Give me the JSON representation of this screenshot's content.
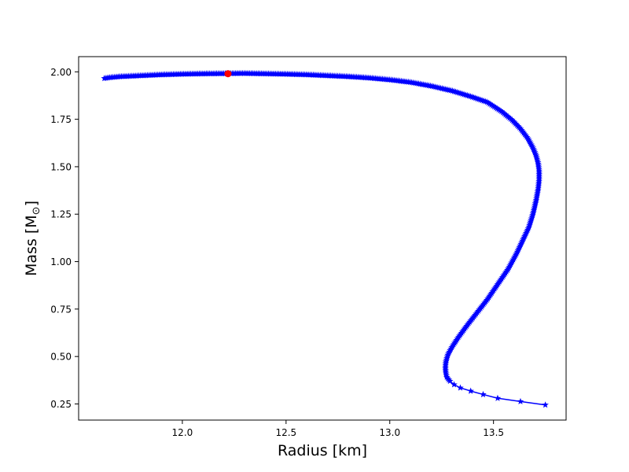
{
  "chart_data": {
    "type": "line",
    "title": "",
    "xlabel": "Radius [km]",
    "ylabel_main": "Mass [M",
    "ylabel_sub": "⊙",
    "ylabel_close": "]",
    "xlim": [
      11.5,
      13.85
    ],
    "ylim": [
      0.165,
      2.08
    ],
    "xticks": [
      12.0,
      12.5,
      13.0,
      13.5
    ],
    "xtick_labels": [
      "12.0",
      "12.5",
      "13.0",
      "13.5"
    ],
    "yticks": [
      0.25,
      0.5,
      0.75,
      1.0,
      1.25,
      1.5,
      1.75,
      2.0
    ],
    "ytick_labels": [
      "0.25",
      "0.50",
      "0.75",
      "1.00",
      "1.25",
      "1.50",
      "1.75",
      "2.00"
    ],
    "grid": false,
    "series_color": "#0000ff",
    "highlight_color": "#ff0000",
    "series": [
      {
        "x": [
          13.75,
          13.63,
          13.52,
          13.45,
          13.39,
          13.34,
          13.31,
          13.29,
          13.275,
          13.27,
          13.268,
          13.27,
          13.28,
          13.3,
          13.33,
          13.37,
          13.42,
          13.47,
          13.52,
          13.57,
          13.61,
          13.64,
          13.67,
          13.69,
          13.705,
          13.715,
          13.72,
          13.72,
          13.715,
          13.705,
          13.69,
          13.665,
          13.63,
          13.59,
          13.54,
          13.47,
          13.39,
          13.3,
          13.2,
          13.1,
          13.0,
          12.9,
          12.8,
          12.7,
          12.6,
          12.5,
          12.4,
          12.3,
          12.2,
          12.1,
          12.0,
          11.9,
          11.8,
          11.7,
          11.65,
          11.62
        ],
        "y": [
          0.245,
          0.263,
          0.28,
          0.3,
          0.318,
          0.335,
          0.352,
          0.37,
          0.39,
          0.415,
          0.44,
          0.47,
          0.51,
          0.55,
          0.6,
          0.66,
          0.73,
          0.8,
          0.88,
          0.96,
          1.04,
          1.11,
          1.18,
          1.25,
          1.32,
          1.38,
          1.43,
          1.48,
          1.52,
          1.56,
          1.6,
          1.65,
          1.7,
          1.745,
          1.79,
          1.84,
          1.87,
          1.9,
          1.925,
          1.945,
          1.958,
          1.968,
          1.975,
          1.98,
          1.985,
          1.988,
          1.99,
          1.992,
          1.991,
          1.99,
          1.988,
          1.985,
          1.98,
          1.975,
          1.97,
          1.965
        ]
      }
    ],
    "highlight_point": {
      "x": 12.22,
      "y": 1.99
    }
  }
}
